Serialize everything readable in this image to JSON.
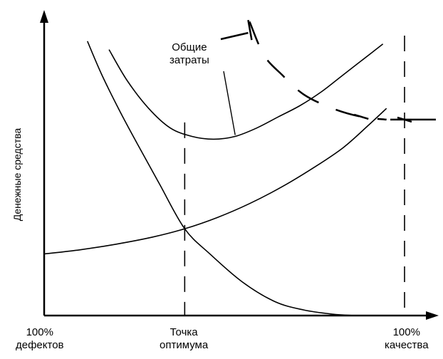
{
  "chart_data": {
    "type": "line",
    "ylabel": "Денежные средства",
    "x_labels": [
      {
        "line1": "100%",
        "line2": "дефектов",
        "x": 0
      },
      {
        "line1": "Точка",
        "line2": "оптимума",
        "x": 0.39
      },
      {
        "line1": "100%",
        "line2": "качества",
        "x": 1.0
      }
    ],
    "annotation": {
      "line1": "Общие",
      "line2": "затраты"
    },
    "xlim": [
      0,
      1
    ],
    "ylim": [
      0,
      1
    ],
    "grid": false,
    "series": [
      {
        "key": "total_costs",
        "label_ref": "annotation",
        "x": [
          0.18,
          0.23,
          0.29,
          0.35,
          0.41,
          0.47,
          0.53,
          0.59,
          0.65,
          0.71,
          0.77,
          0.82,
          0.87,
          0.91,
          0.94
        ],
        "y": [
          0.95,
          0.84,
          0.74,
          0.67,
          0.64,
          0.63,
          0.64,
          0.67,
          0.71,
          0.75,
          0.8,
          0.85,
          0.9,
          0.94,
          0.97
        ]
      },
      {
        "key": "quality_costs",
        "x": [
          0.0,
          0.1,
          0.2,
          0.3,
          0.39,
          0.48,
          0.57,
          0.66,
          0.75,
          0.83,
          0.9,
          0.95
        ],
        "y": [
          0.22,
          0.235,
          0.255,
          0.28,
          0.31,
          0.35,
          0.4,
          0.46,
          0.53,
          0.6,
          0.68,
          0.74
        ]
      },
      {
        "key": "defect_costs",
        "x": [
          0.12,
          0.16,
          0.21,
          0.26,
          0.32,
          0.39,
          0.46,
          0.55,
          0.64,
          0.72,
          0.8,
          0.86
        ],
        "y": [
          0.98,
          0.86,
          0.73,
          0.61,
          0.47,
          0.31,
          0.22,
          0.12,
          0.05,
          0.02,
          0.005,
          0.0
        ]
      },
      {
        "key": "quality_100_branch",
        "dashed": true,
        "x": [
          0.57,
          0.61,
          0.66,
          0.72,
          0.8,
          0.88,
          0.95
        ],
        "y": [
          1.05,
          0.93,
          0.86,
          0.79,
          0.74,
          0.71,
          0.7
        ]
      }
    ],
    "vlines": [
      {
        "x": 0.39,
        "y_top": 0.69,
        "dashed": true
      },
      {
        "x": 1.0,
        "y_top": 1.0,
        "dashed": true
      }
    ],
    "tick_marks": [
      {
        "x": 0.57,
        "y": 1.02
      },
      {
        "x": 0.88,
        "y": 0.71
      },
      {
        "x": 1.0,
        "y": 0.7
      }
    ]
  }
}
